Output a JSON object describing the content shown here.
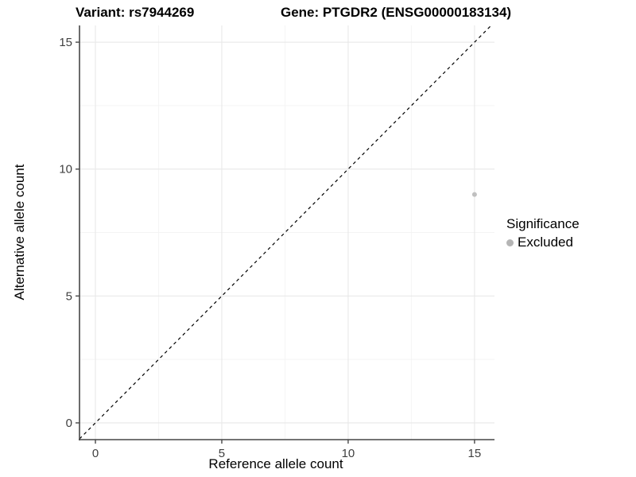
{
  "figure": {
    "title_left": "Variant: rs7944269",
    "title_right": "Gene: PTGDR2 (ENSG00000183134)"
  },
  "legend": {
    "title": "Significance",
    "items": [
      {
        "label": "Excluded",
        "marker": "circle-icon",
        "color": "#b5b5b5"
      }
    ]
  },
  "chart_data": {
    "type": "scatter",
    "title": "Variant: rs7944269   Gene: PTGDR2 (ENSG00000183134)",
    "xlabel": "Reference allele count",
    "ylabel": "Alternative allele count",
    "xlim": [
      -0.63,
      15.79
    ],
    "ylim": [
      -0.66,
      15.66
    ],
    "xticks": [
      0,
      5,
      10,
      15
    ],
    "yticks": [
      0,
      5,
      10,
      15
    ],
    "minor_xticks": [
      2.5,
      7.5,
      12.5
    ],
    "minor_yticks": [
      2.5,
      7.5,
      12.5
    ],
    "grid": true,
    "legend_position": "right",
    "series": [
      {
        "name": "Excluded",
        "color": "#c0c0c0",
        "marker_radius": 3,
        "points": [
          {
            "x": 15,
            "y": 9
          }
        ]
      }
    ],
    "reference_line": {
      "style": "dashed",
      "slope": 1,
      "intercept": 0,
      "color": "#000000",
      "dash": "4 4"
    },
    "style_colors": {
      "grid_major": "#e8e8e8",
      "grid_minor": "#f4f4f4",
      "axis_line": "#474747",
      "tick_label": "#404040",
      "background": "#ffffff"
    }
  }
}
